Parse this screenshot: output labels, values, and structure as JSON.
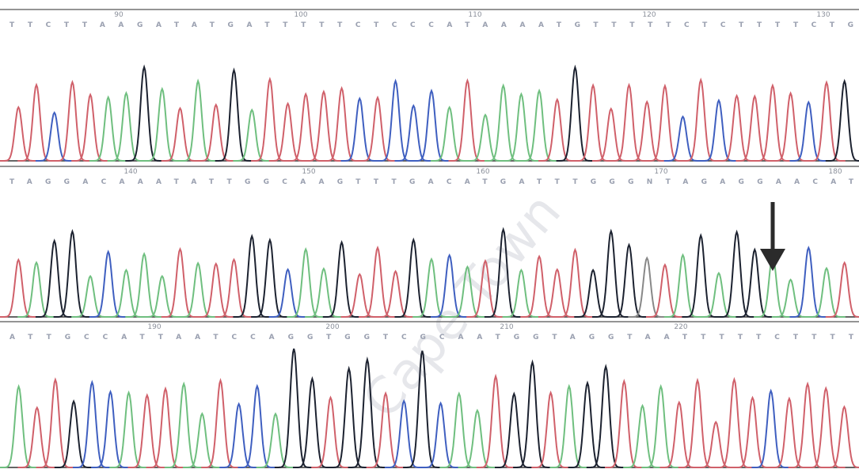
{
  "panels": [
    {
      "positions": [
        "90",
        "100",
        "110",
        "120",
        "130"
      ],
      "sequence": "TTCTTAAGATATGATTTTTCTCCCATAAAATGTTTTTCTCTTTTCTG"
    },
    {
      "positions": [
        "140",
        "150",
        "160",
        "170",
        "180"
      ],
      "sequence": "TAGGACAAATATTGGCAAGTTTGACATGATTTGGGNTAGAGGAACAT"
    },
    {
      "positions": [
        "190",
        "200",
        "210",
        "220"
      ],
      "sequence": "ATTGCCATTAATCCAGGTGGTCGCAATGGTAGGTAATTTTTCTTTT"
    }
  ],
  "base_colors": {
    "A": "#6fbf7f",
    "C": "#3f5fc0",
    "G": "#1c2230",
    "T": "#d0606a",
    "N": "#888888"
  },
  "watermark": "Cape Town"
}
